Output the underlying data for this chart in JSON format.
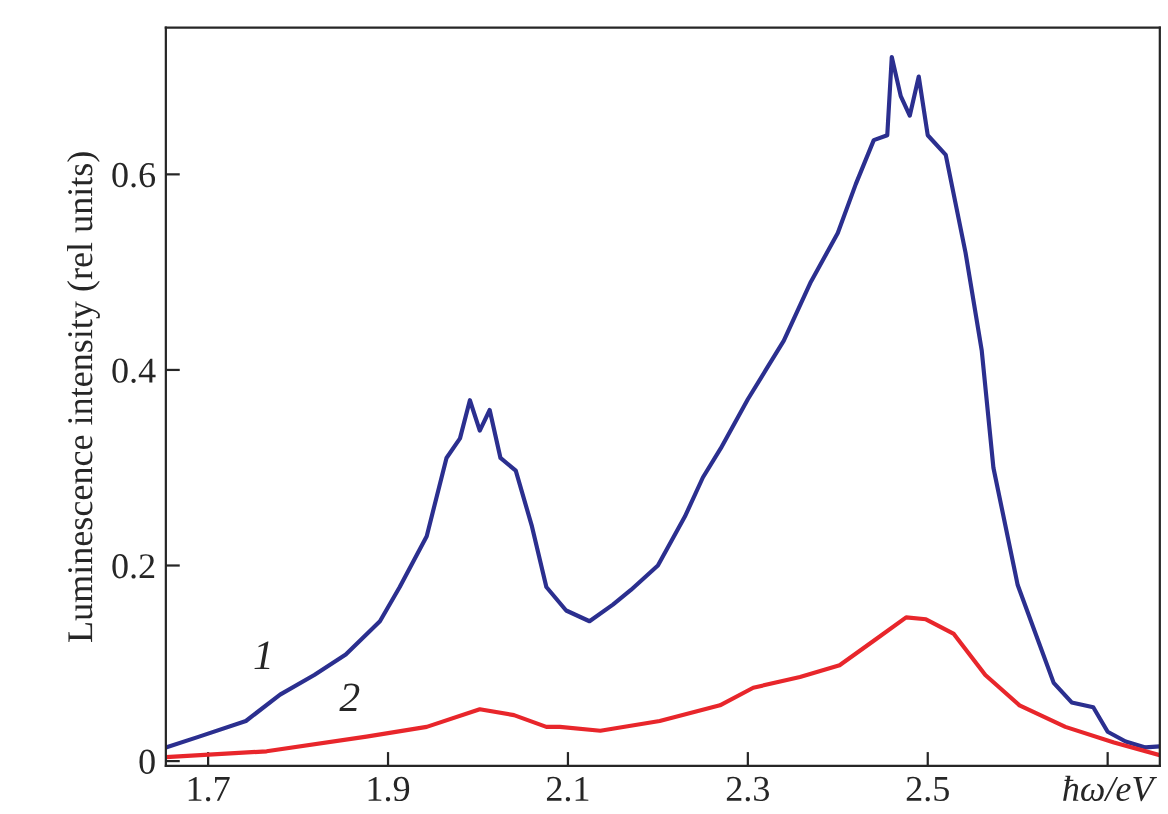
{
  "chart_data": {
    "type": "line",
    "ylabel": "Luminescence intensity (rel units)",
    "xlim": [
      1.653,
      2.758
    ],
    "ylim": [
      -0.005,
      0.75
    ],
    "xticks": [
      1.7,
      1.9,
      2.1,
      2.3,
      2.5,
      {
        "value": 2.7,
        "label": "ħω/eV"
      }
    ],
    "yticks": [
      {
        "value": 0,
        "label": "0"
      },
      0.2,
      0.4,
      0.6
    ],
    "grid": false,
    "marker": "none",
    "line_style": "solid",
    "series": [
      {
        "name": "1",
        "color": "#2b2f8f",
        "x": [
          1.653,
          1.69,
          1.742,
          1.78,
          1.818,
          1.853,
          1.891,
          1.913,
          1.943,
          1.965,
          1.98,
          1.991,
          2.002,
          2.013,
          2.025,
          2.042,
          2.06,
          2.076,
          2.098,
          2.124,
          2.15,
          2.17,
          2.2,
          2.23,
          2.25,
          2.27,
          2.3,
          2.32,
          2.34,
          2.37,
          2.4,
          2.42,
          2.44,
          2.455,
          2.46,
          2.47,
          2.48,
          2.49,
          2.5,
          2.52,
          2.542,
          2.56,
          2.573,
          2.6,
          2.624,
          2.64,
          2.66,
          2.684,
          2.7,
          2.72,
          2.742,
          2.758
        ],
        "values": [
          0.014,
          0.025,
          0.041,
          0.068,
          0.088,
          0.109,
          0.143,
          0.178,
          0.23,
          0.31,
          0.33,
          0.369,
          0.338,
          0.359,
          0.31,
          0.297,
          0.24,
          0.178,
          0.154,
          0.143,
          0.16,
          0.175,
          0.2,
          0.25,
          0.29,
          0.32,
          0.37,
          0.4,
          0.43,
          0.49,
          0.54,
          0.59,
          0.635,
          0.64,
          0.72,
          0.68,
          0.66,
          0.7,
          0.64,
          0.62,
          0.52,
          0.42,
          0.3,
          0.18,
          0.12,
          0.08,
          0.06,
          0.055,
          0.03,
          0.02,
          0.014,
          0.015
        ]
      },
      {
        "name": "2",
        "color": "#e8262b",
        "x": [
          1.653,
          1.765,
          1.876,
          1.943,
          2.002,
          2.04,
          2.076,
          2.091,
          2.136,
          2.202,
          2.269,
          2.306,
          2.358,
          2.402,
          2.44,
          2.476,
          2.498,
          2.529,
          2.564,
          2.602,
          2.653,
          2.707,
          2.758
        ],
        "values": [
          0.004,
          0.01,
          0.025,
          0.035,
          0.053,
          0.047,
          0.035,
          0.035,
          0.031,
          0.041,
          0.057,
          0.075,
          0.086,
          0.098,
          0.123,
          0.147,
          0.145,
          0.13,
          0.088,
          0.057,
          0.035,
          0.019,
          0.006
        ]
      }
    ]
  }
}
